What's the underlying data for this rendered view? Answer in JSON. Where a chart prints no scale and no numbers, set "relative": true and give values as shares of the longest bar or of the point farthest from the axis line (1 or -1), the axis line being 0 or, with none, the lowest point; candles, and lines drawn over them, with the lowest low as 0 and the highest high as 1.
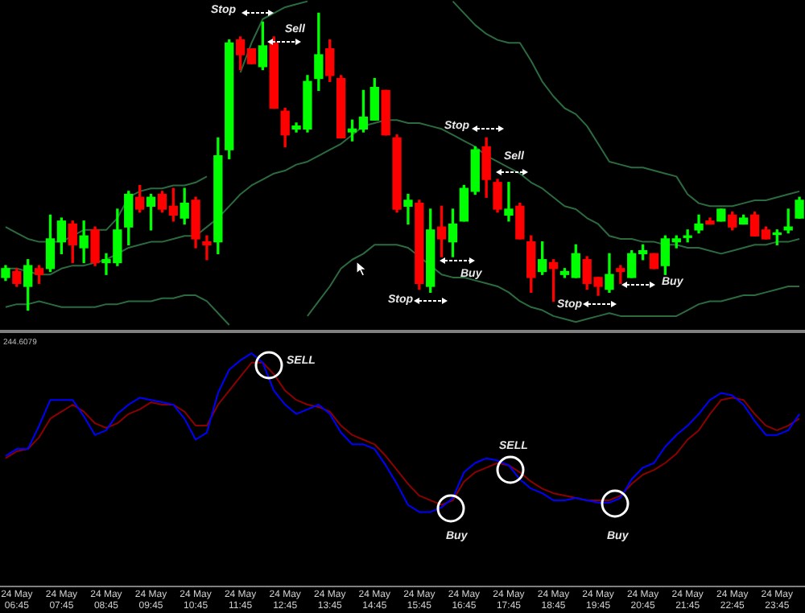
{
  "chart_data": [
    {
      "type": "candlestick",
      "relative": true,
      "tick_labels": false,
      "grid": false,
      "legend": false,
      "categories": [
        null,
        null,
        null,
        null,
        null,
        null,
        null,
        null,
        null,
        null,
        null,
        null,
        null,
        null,
        null,
        null,
        null,
        null,
        null,
        null,
        null,
        null,
        null,
        null,
        null,
        null,
        null,
        null,
        null,
        null,
        null,
        null,
        null,
        null,
        null,
        null,
        null,
        null,
        null,
        null,
        null,
        null,
        null,
        null,
        null,
        null,
        null,
        null,
        null,
        null,
        null,
        null,
        null,
        null,
        null,
        null,
        null,
        null,
        null,
        null,
        null,
        null,
        null,
        null,
        null,
        null,
        null,
        null,
        null,
        null,
        null,
        null
      ],
      "ohlc": [
        [
          0.11,
          0.15,
          0.1,
          0.14
        ],
        [
          0.13,
          0.14,
          0.08,
          0.09
        ],
        [
          0.08,
          0.17,
          0,
          0.15
        ],
        [
          0.14,
          0.15,
          0.09,
          0.12
        ],
        [
          0.14,
          0.32,
          0.13,
          0.24
        ],
        [
          0.23,
          0.31,
          0.19,
          0.3
        ],
        [
          0.29,
          0.3,
          0.16,
          0.22
        ],
        [
          0.21,
          0.3,
          0.16,
          0.25
        ],
        [
          0.27,
          0.28,
          0.15,
          0.16
        ],
        [
          0.16,
          0.19,
          0.12,
          0.17
        ],
        [
          0.16,
          0.34,
          0.15,
          0.27
        ],
        [
          0.28,
          0.4,
          0.22,
          0.39
        ],
        [
          0.38,
          0.42,
          0.33,
          0.34
        ],
        [
          0.35,
          0.39,
          0.27,
          0.38
        ],
        [
          0.39,
          0.4,
          0.33,
          0.34
        ],
        [
          0.35,
          0.41,
          0.3,
          0.32
        ],
        [
          0.31,
          0.41,
          0.29,
          0.36
        ],
        [
          0.37,
          0.38,
          0.21,
          0.24
        ],
        [
          0.23,
          0.25,
          0.17,
          0.22
        ],
        [
          0.23,
          0.58,
          0.19,
          0.52
        ],
        [
          0.54,
          0.91,
          0.51,
          0.9
        ],
        [
          0.91,
          0.92,
          0.81,
          0.86
        ],
        [
          0.88,
          0.88,
          0.83,
          0.83
        ],
        [
          0.82,
          0.97,
          0.81,
          0.89
        ],
        [
          0.9,
          0.92,
          0.68,
          0.68
        ],
        [
          0.67,
          0.68,
          0.55,
          0.59
        ],
        [
          0.61,
          0.63,
          0.6,
          0.62
        ],
        [
          0.61,
          0.79,
          0.6,
          0.77
        ],
        [
          0.78,
          1,
          0.74,
          0.86
        ],
        [
          0.88,
          0.91,
          0.77,
          0.79
        ],
        [
          0.78,
          0.79,
          0.58,
          0.58
        ],
        [
          0.6,
          0.64,
          0.57,
          0.61
        ],
        [
          0.61,
          0.74,
          0.6,
          0.65
        ],
        [
          0.64,
          0.78,
          0.64,
          0.75
        ],
        [
          0.74,
          0.74,
          0.59,
          0.59
        ],
        [
          0.58,
          0.59,
          0.33,
          0.34
        ],
        [
          0.35,
          0.39,
          0.29,
          0.37
        ],
        [
          0.36,
          0.37,
          0.07,
          0.09
        ],
        [
          0.08,
          0.34,
          0.06,
          0.27
        ],
        [
          0.28,
          0.35,
          0.18,
          0.24
        ],
        [
          0.23,
          0.34,
          0.18,
          0.29
        ],
        [
          0.3,
          0.42,
          0.3,
          0.41
        ],
        [
          0.4,
          0.55,
          0.39,
          0.54
        ],
        [
          0.55,
          0.58,
          0.38,
          0.44
        ],
        [
          0.43,
          0.44,
          0.33,
          0.34
        ],
        [
          0.32,
          0.43,
          0.3,
          0.34
        ],
        [
          0.35,
          0.36,
          0.24,
          0.24
        ],
        [
          0.23,
          0.25,
          0.06,
          0.11
        ],
        [
          0.13,
          0.23,
          0.12,
          0.17
        ],
        [
          0.16,
          0.17,
          0.03,
          0.14
        ],
        [
          0.12,
          0.14,
          0.11,
          0.13
        ],
        [
          0.11,
          0.22,
          0.11,
          0.19
        ],
        [
          0.17,
          0.18,
          0.07,
          0.09
        ],
        [
          0.11,
          0.11,
          0.05,
          0.08
        ],
        [
          0.07,
          0.19,
          0.06,
          0.12
        ],
        [
          0.14,
          0.15,
          0.09,
          0.13
        ],
        [
          0.11,
          0.2,
          0.11,
          0.19
        ],
        [
          0.19,
          0.22,
          0.17,
          0.2
        ],
        [
          0.19,
          0.19,
          0.14,
          0.14
        ],
        [
          0.15,
          0.25,
          0.12,
          0.24
        ],
        [
          0.23,
          0.25,
          0.21,
          0.24
        ],
        [
          0.25,
          0.27,
          0.23,
          0.25
        ],
        [
          0.27,
          0.32,
          0.26,
          0.29
        ],
        [
          0.3,
          0.31,
          0.29,
          0.29
        ],
        [
          0.3,
          0.34,
          0.3,
          0.34
        ],
        [
          0.32,
          0.33,
          0.27,
          0.28
        ],
        [
          0.29,
          0.32,
          0.29,
          0.31
        ],
        [
          0.32,
          0.33,
          0.25,
          0.25
        ],
        [
          0.27,
          0.28,
          0.24,
          0.24
        ],
        [
          0.26,
          0.27,
          0.22,
          0.26
        ],
        [
          0.27,
          0.34,
          0.26,
          0.28
        ],
        [
          0.31,
          0.38,
          0.31,
          0.37
        ]
      ],
      "series": [
        {
          "type": "line",
          "color": "#2b6b3f",
          "values": [
            0.28,
            0.26,
            0.24,
            0.23,
            0.23,
            0.23,
            0.25,
            0.27,
            0.27,
            0.27,
            0.31,
            0.38,
            0.4,
            0.41,
            0.41,
            0.42,
            0.42,
            0.43,
            0.45,
            null,
            null,
            0.8,
            0.9,
            0.98,
            1.0,
            1.02,
            1.03,
            1.04,
            null,
            null,
            null,
            null,
            null,
            null,
            null,
            null,
            null,
            null,
            null,
            null,
            1.04,
            1.0,
            0.96,
            0.93,
            0.91,
            0.9,
            0.9,
            0.84,
            0.77,
            0.72,
            0.68,
            0.66,
            0.62,
            0.56,
            0.5,
            0.49,
            0.48,
            0.48,
            0.47,
            0.46,
            0.45,
            0.39,
            0.36,
            0.35,
            0.35,
            0.35,
            0.36,
            0.37,
            0.37,
            0.38,
            0.39,
            0.4
          ]
        },
        {
          "type": "line",
          "color": "#2b6b3f",
          "values": [
            0.14,
            0.14,
            0.13,
            0.12,
            0.12,
            0.14,
            0.15,
            0.15,
            0.16,
            0.17,
            0.19,
            0.21,
            0.22,
            0.23,
            0.23,
            0.24,
            0.25,
            0.25,
            0.28,
            0.31,
            0.35,
            0.39,
            0.42,
            0.44,
            0.46,
            0.47,
            0.49,
            0.5,
            0.52,
            0.54,
            0.56,
            0.59,
            0.62,
            0.63,
            0.64,
            0.64,
            0.63,
            0.63,
            0.62,
            0.61,
            0.59,
            0.57,
            0.55,
            0.52,
            0.5,
            0.48,
            0.46,
            0.43,
            0.41,
            0.38,
            0.35,
            0.34,
            0.31,
            0.29,
            0.25,
            0.24,
            0.24,
            0.23,
            0.23,
            0.22,
            0.22,
            0.21,
            0.21,
            0.2,
            0.19,
            0.2,
            0.21,
            0.22,
            0.22,
            0.23,
            0.23,
            0.24
          ]
        },
        {
          "type": "line",
          "color": "#2b6b3f",
          "values": [
            0.01,
            0.02,
            0.02,
            0.03,
            0.02,
            0.01,
            0.01,
            0.01,
            0.01,
            0.02,
            0.02,
            0.03,
            0.03,
            0.03,
            0.04,
            0.04,
            0.05,
            0.05,
            0.03,
            -0.01,
            -0.05,
            null,
            null,
            null,
            null,
            null,
            null,
            -0.02,
            0.03,
            0.08,
            0.14,
            0.17,
            0.19,
            0.22,
            0.22,
            0.22,
            0.21,
            0.18,
            0.15,
            0.12,
            0.11,
            0.11,
            0.1,
            0.09,
            0.08,
            0.06,
            0.03,
            0.01,
            0,
            -0.02,
            -0.03,
            -0.04,
            -0.03,
            -0.02,
            -0.01,
            -0.02,
            -0.02,
            -0.02,
            -0.02,
            -0.02,
            -0.02,
            0,
            0.02,
            0.03,
            0.03,
            0.04,
            0.05,
            0.05,
            0.06,
            0.07,
            0.08,
            0.08
          ]
        }
      ],
      "annotations": [
        "Stop",
        "Sell",
        "Stop",
        "Sell",
        "Stop",
        "Buy",
        "Stop",
        "Buy"
      ]
    },
    {
      "type": "line",
      "relative": true,
      "tick_labels": "x",
      "grid": false,
      "legend": false,
      "categories": [
        null,
        "24 May 06:45",
        null,
        null,
        null,
        "24 May 07:45",
        null,
        null,
        null,
        "24 May 08:45",
        null,
        null,
        null,
        "24 May 09:45",
        null,
        null,
        null,
        "24 May 10:45",
        null,
        null,
        null,
        "24 May 11:45",
        null,
        null,
        null,
        "24 May 12:45",
        null,
        null,
        null,
        "24 May 13:45",
        null,
        null,
        null,
        "24 May 14:45",
        null,
        null,
        null,
        "24 May 15:45",
        null,
        null,
        null,
        "24 May 16:45",
        null,
        null,
        null,
        "24 May 17:45",
        null,
        null,
        null,
        "24 May 18:45",
        null,
        null,
        null,
        "24 May 19:45",
        null,
        null,
        null,
        "24 May 20:45",
        null,
        null,
        null,
        "24 May 21:45",
        null,
        null,
        null,
        "24 May 22:45",
        null,
        null,
        null,
        "24 May 23:45",
        null,
        null
      ],
      "series": [
        {
          "color": "#0000ff",
          "values": [
            0.56,
            0.59,
            0.59,
            0.69,
            0.8,
            0.8,
            0.8,
            0.73,
            0.65,
            0.67,
            0.74,
            0.78,
            0.81,
            0.8,
            0.79,
            0.78,
            0.72,
            0.63,
            0.66,
            0.83,
            0.93,
            0.97,
            1,
            0.96,
            0.84,
            0.78,
            0.74,
            0.76,
            0.78,
            0.74,
            0.66,
            0.61,
            0.61,
            0.59,
            0.52,
            0.44,
            0.35,
            0.32,
            0.32,
            0.34,
            0.38,
            0.49,
            0.53,
            0.55,
            0.54,
            0.52,
            0.46,
            0.42,
            0.4,
            0.37,
            0.37,
            0.38,
            0.37,
            0.36,
            0.36,
            0.38,
            0.46,
            0.51,
            0.53,
            0.6,
            0.65,
            0.69,
            0.74,
            0.8,
            0.83,
            0.82,
            0.78,
            0.71,
            0.65,
            0.65,
            0.67,
            0.74
          ]
        },
        {
          "color": "#8b0000",
          "values": [
            0.55,
            0.58,
            0.59,
            0.64,
            0.72,
            0.75,
            0.78,
            0.75,
            0.7,
            0.68,
            0.7,
            0.74,
            0.76,
            0.79,
            0.78,
            0.78,
            0.75,
            0.69,
            0.69,
            0.78,
            0.84,
            0.9,
            0.96,
            0.96,
            0.91,
            0.84,
            0.8,
            0.78,
            0.77,
            0.75,
            0.69,
            0.65,
            0.63,
            0.61,
            0.56,
            0.5,
            0.44,
            0.39,
            0.37,
            0.35,
            0.37,
            0.45,
            0.49,
            0.51,
            0.53,
            0.52,
            0.49,
            0.45,
            0.42,
            0.4,
            0.39,
            0.38,
            0.37,
            0.37,
            0.37,
            0.39,
            0.44,
            0.48,
            0.5,
            0.53,
            0.57,
            0.63,
            0.67,
            0.74,
            0.8,
            0.81,
            0.8,
            0.74,
            0.69,
            0.67,
            0.69,
            0.72
          ]
        }
      ],
      "annotations": [
        "244.6079",
        "SELL",
        "Buy",
        "SELL",
        "Buy"
      ]
    }
  ]
}
